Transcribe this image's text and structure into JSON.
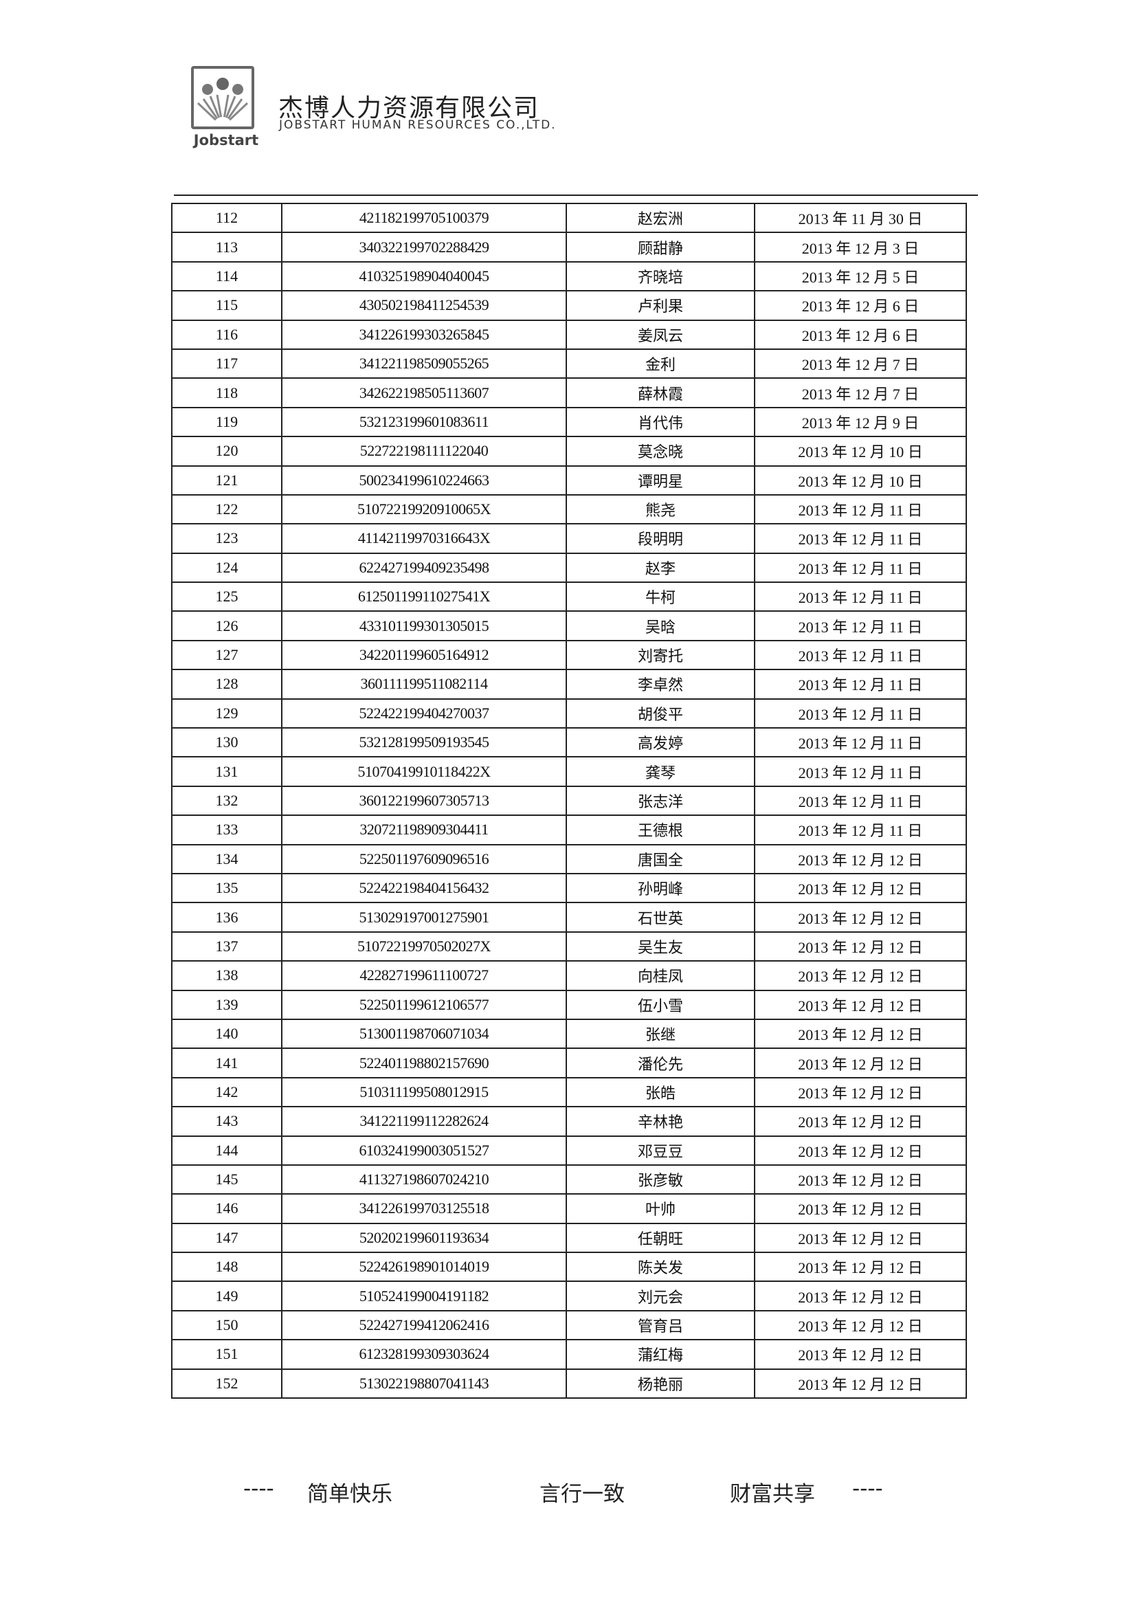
{
  "header": {
    "logo_text": "Jobstart",
    "company_name_cn": "杰博人力资源有限公司",
    "company_name_en": "JOBSTART HUMAN RESOURCES CO.,LTD."
  },
  "table": {
    "rows": [
      [
        "112",
        "421182199705100379",
        "赵宏洲",
        "2013 年 11 月 30 日"
      ],
      [
        "113",
        "340322199702288429",
        "顾甜静",
        "2013 年 12 月 3 日"
      ],
      [
        "114",
        "410325198904040045",
        "齐晓培",
        "2013 年 12 月 5 日"
      ],
      [
        "115",
        "430502198411254539",
        "卢利果",
        "2013 年 12 月 6 日"
      ],
      [
        "116",
        "341226199303265845",
        "姜凤云",
        "2013 年 12 月 6 日"
      ],
      [
        "117",
        "341221198509055265",
        "金利",
        "2013 年 12 月 7 日"
      ],
      [
        "118",
        "342622198505113607",
        "薛林霞",
        "2013 年 12 月 7 日"
      ],
      [
        "119",
        "532123199601083611",
        "肖代伟",
        "2013 年 12 月 9 日"
      ],
      [
        "120",
        "522722198111122040",
        "莫念晓",
        "2013 年 12 月 10 日"
      ],
      [
        "121",
        "500234199610224663",
        "谭明星",
        "2013 年 12 月 10 日"
      ],
      [
        "122",
        "51072219920910065X",
        "熊尧",
        "2013 年 12 月 11 日"
      ],
      [
        "123",
        "41142119970316643X",
        "段明明",
        "2013 年 12 月 11 日"
      ],
      [
        "124",
        "622427199409235498",
        "赵李",
        "2013 年 12 月 11 日"
      ],
      [
        "125",
        "61250119911027541X",
        "牛柯",
        "2013 年 12 月 11 日"
      ],
      [
        "126",
        "433101199301305015",
        "吴晗",
        "2013 年 12 月 11 日"
      ],
      [
        "127",
        "342201199605164912",
        "刘寄托",
        "2013 年 12 月 11 日"
      ],
      [
        "128",
        "360111199511082114",
        "李卓然",
        "2013 年 12 月 11 日"
      ],
      [
        "129",
        "522422199404270037",
        "胡俊平",
        "2013 年 12 月 11 日"
      ],
      [
        "130",
        "532128199509193545",
        "高发婷",
        "2013 年 12 月 11 日"
      ],
      [
        "131",
        "51070419910118422X",
        "龚琴",
        "2013 年 12 月 11 日"
      ],
      [
        "132",
        "360122199607305713",
        "张志洋",
        "2013 年 12 月 11 日"
      ],
      [
        "133",
        "320721198909304411",
        "王德根",
        "2013 年 12 月 11 日"
      ],
      [
        "134",
        "522501197609096516",
        "唐国全",
        "2013 年 12 月 12 日"
      ],
      [
        "135",
        "522422198404156432",
        "孙明峰",
        "2013 年 12 月 12 日"
      ],
      [
        "136",
        "513029197001275901",
        "石世英",
        "2013 年 12 月 12 日"
      ],
      [
        "137",
        "51072219970502027X",
        "吴生友",
        "2013 年 12 月 12 日"
      ],
      [
        "138",
        "422827199611100727",
        "向桂凤",
        "2013 年 12 月 12 日"
      ],
      [
        "139",
        "522501199612106577",
        "伍小雪",
        "2013 年 12 月 12 日"
      ],
      [
        "140",
        "513001198706071034",
        "张继",
        "2013 年 12 月 12 日"
      ],
      [
        "141",
        "522401198802157690",
        "潘伦先",
        "2013 年 12 月 12 日"
      ],
      [
        "142",
        "510311199508012915",
        "张皓",
        "2013 年 12 月 12 日"
      ],
      [
        "143",
        "341221199112282624",
        "辛林艳",
        "2013 年 12 月 12 日"
      ],
      [
        "144",
        "610324199003051527",
        "邓豆豆",
        "2013 年 12 月 12 日"
      ],
      [
        "145",
        "411327198607024210",
        "张彦敏",
        "2013 年 12 月 12 日"
      ],
      [
        "146",
        "341226199703125518",
        "叶帅",
        "2013 年 12 月 12 日"
      ],
      [
        "147",
        "520202199601193634",
        "任朝旺",
        "2013 年 12 月 12 日"
      ],
      [
        "148",
        "522426198901014019",
        "陈关发",
        "2013 年 12 月 12 日"
      ],
      [
        "149",
        "510524199004191182",
        "刘元会",
        "2013 年 12 月 12 日"
      ],
      [
        "150",
        "522427199412062416",
        "管育吕",
        "2013 年 12 月 12 日"
      ],
      [
        "151",
        "612328199309303624",
        "蒲红梅",
        "2013 年 12 月 12 日"
      ],
      [
        "152",
        "513022198807041143",
        "杨艳丽",
        "2013 年 12 月 12 日"
      ]
    ]
  },
  "footer": {
    "dash_left": "----",
    "slogan_1": "简单快乐",
    "slogan_2": "言行一致",
    "slogan_3": "财富共享",
    "dash_right": "----"
  }
}
